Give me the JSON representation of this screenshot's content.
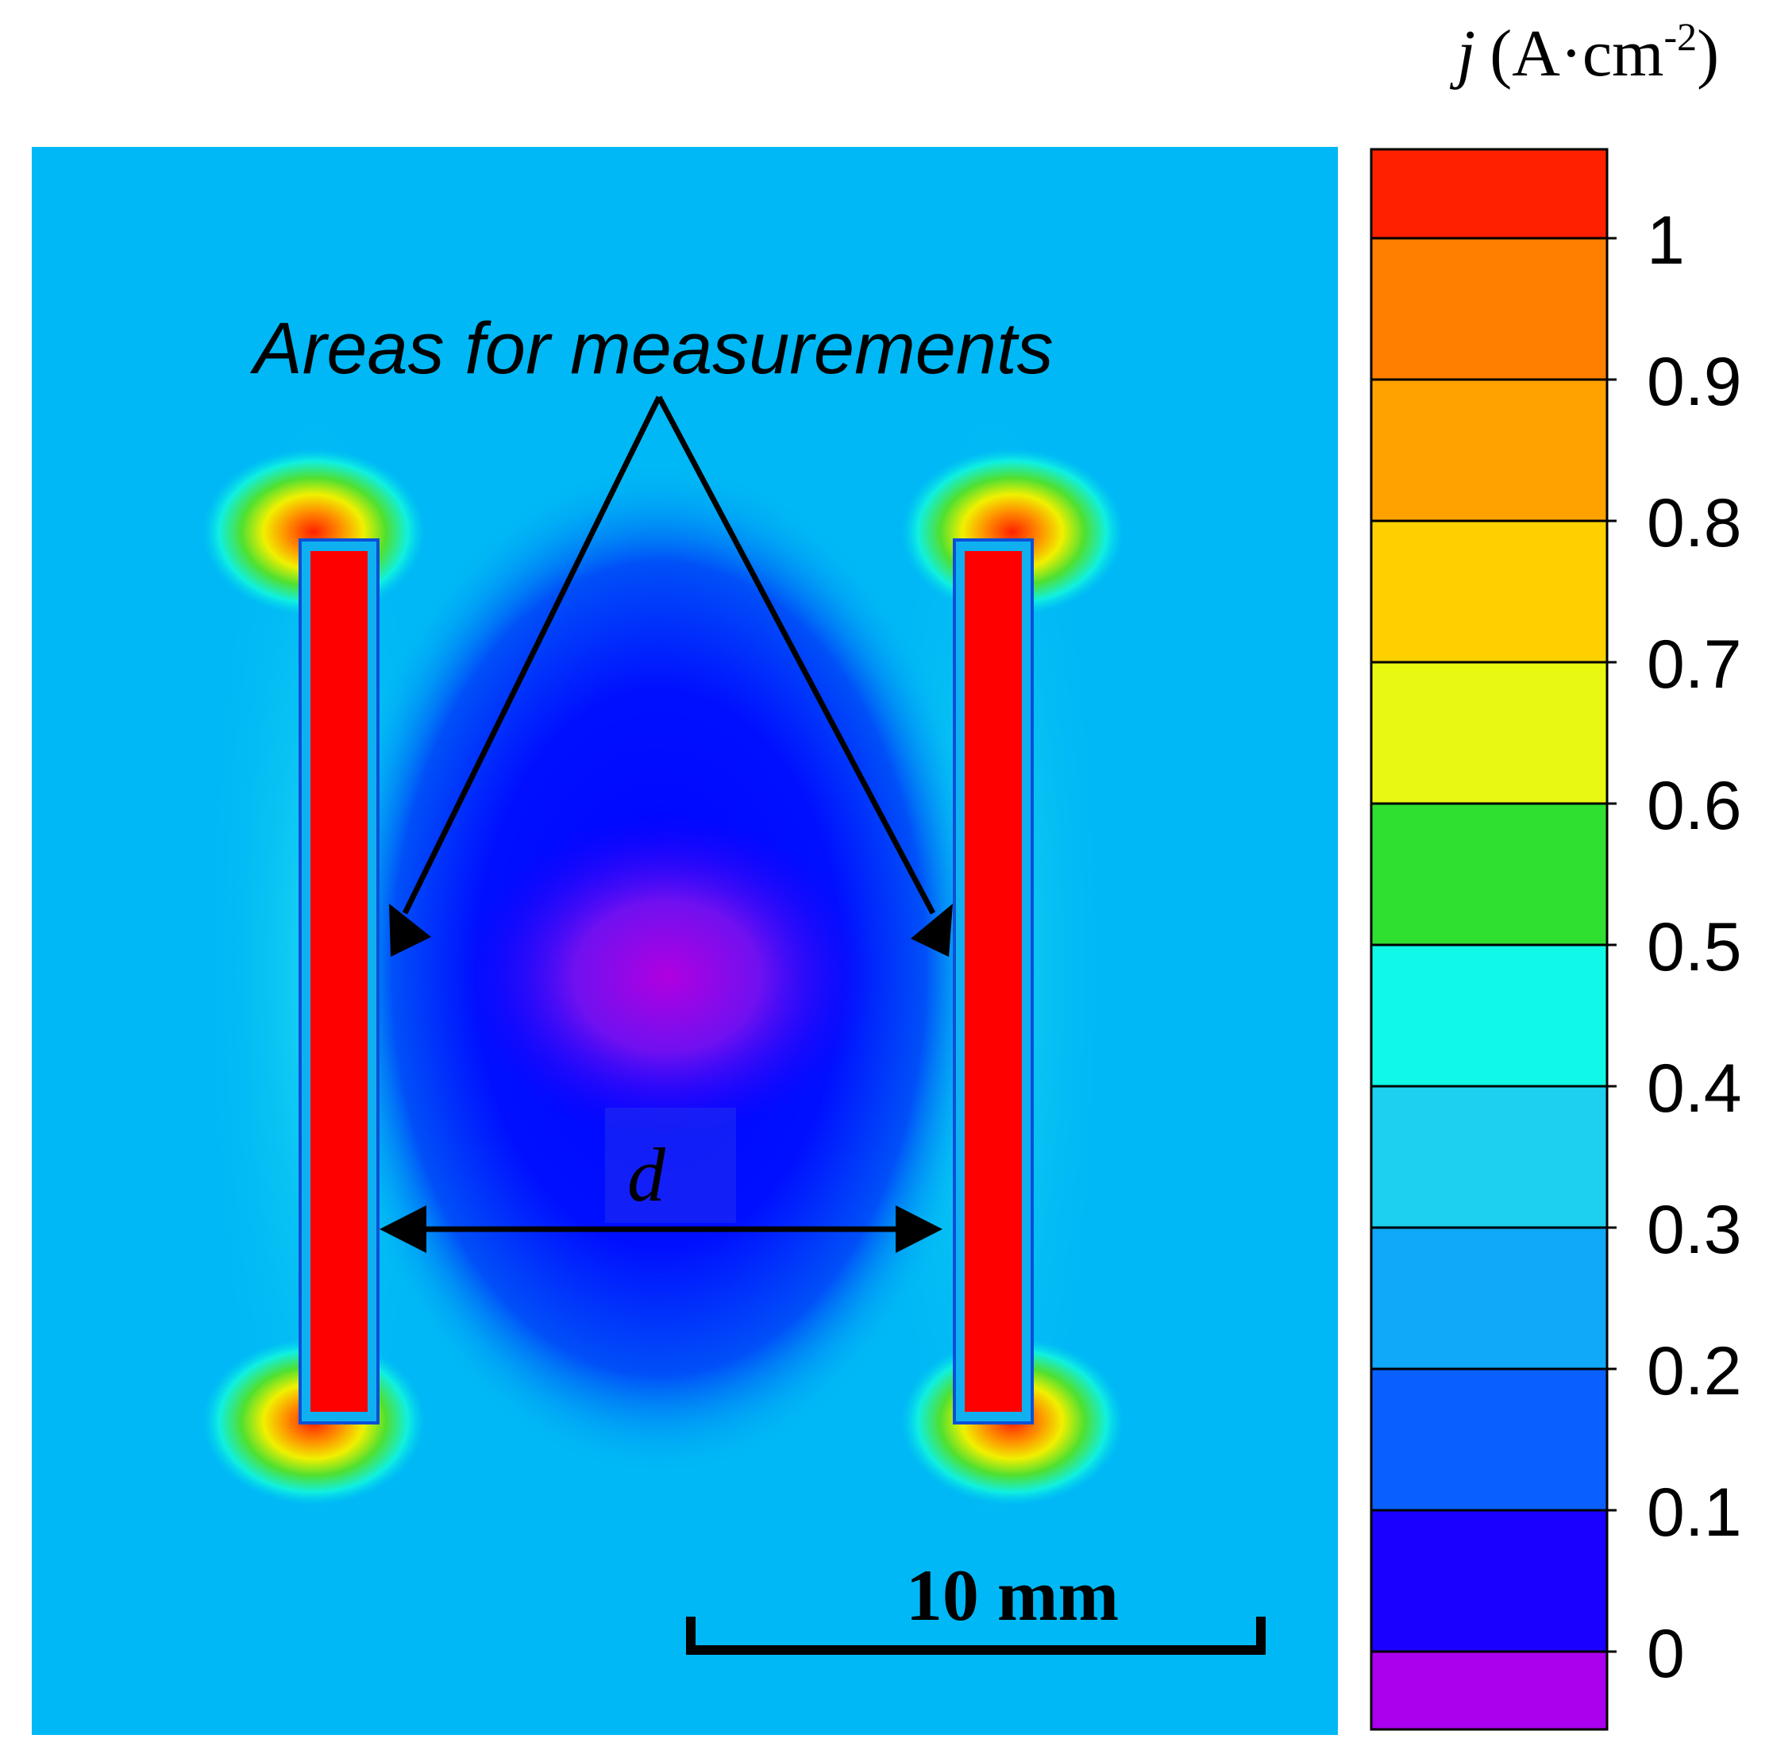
{
  "figure": {
    "annotation": "Areas for measurements",
    "distance_label": "d",
    "scale_bar_label": "10 mm"
  },
  "colorbar": {
    "symbol": "j",
    "unit": "(A·cm",
    "unit_exponent": "-2",
    "unit_close": ")",
    "ticks": [
      "0",
      "0.1",
      "0.2",
      "0.3",
      "0.4",
      "0.5",
      "0.6",
      "0.7",
      "0.8",
      "0.9",
      "1"
    ],
    "bands": [
      "#aa00ee",
      "#1a00ff",
      "#0a60ff",
      "#10a8f8",
      "#1ed0f0",
      "#10f8e8",
      "#30e030",
      "#e8f810",
      "#ffd000",
      "#ffa200",
      "#ff8000",
      "#ff2000"
    ],
    "colors": {
      "background": "#00b8f5",
      "electrode": "#ff0000",
      "low": "#1400ff",
      "minimum": "#a000e6"
    }
  }
}
